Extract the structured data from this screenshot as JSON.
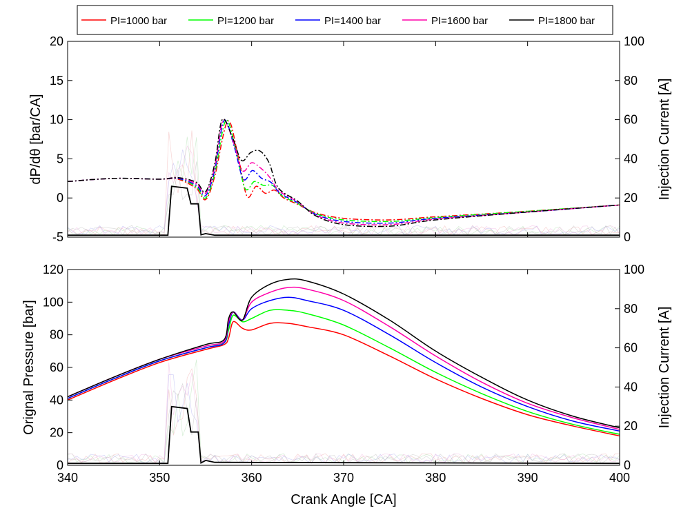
{
  "legend": {
    "items": [
      {
        "label": "PI=1000 bar",
        "color": "#ff0000"
      },
      {
        "label": "PI=1200 bar",
        "color": "#00ff00"
      },
      {
        "label": "PI=1400 bar",
        "color": "#0000ff"
      },
      {
        "label": "PI=1600 bar",
        "color": "#ff00aa"
      },
      {
        "label": "PI=1800 bar",
        "color": "#000000"
      }
    ]
  },
  "chart_data": [
    {
      "type": "line",
      "xlabel": "",
      "ylabel": "dP/dθ [bar/CA]",
      "y2label": "Injection Current [A]",
      "xlim": [
        340,
        400
      ],
      "ylim": [
        -5,
        20
      ],
      "y2lim": [
        0,
        100
      ],
      "xticks": [
        340,
        350,
        360,
        370,
        380,
        390,
        400
      ],
      "xtick_labels_shown": false,
      "yticks": [
        -5,
        0,
        5,
        10,
        15,
        20
      ],
      "y2ticks": [
        0,
        20,
        40,
        60,
        80,
        100
      ],
      "line_style": "dash-dot",
      "series": [
        {
          "name": "PI=1000 bar",
          "color": "#ff0000",
          "x": [
            340,
            345,
            350,
            352,
            354,
            355,
            356,
            357.4,
            358.5,
            359.5,
            360.5,
            361.5,
            362.5,
            363.5,
            365,
            367,
            370,
            375,
            380,
            390,
            400
          ],
          "y": [
            2.1,
            2.5,
            2.4,
            2.4,
            1.2,
            -0.2,
            2.8,
            9.8,
            5.5,
            0.2,
            1.5,
            0.6,
            1.0,
            0.0,
            -0.8,
            -1.9,
            -2.6,
            -2.8,
            -2.4,
            -1.7,
            -0.9
          ]
        },
        {
          "name": "PI=1200 bar",
          "color": "#00ff00",
          "x": [
            340,
            345,
            350,
            352,
            354,
            355,
            356,
            357.2,
            358.3,
            359.3,
            360.3,
            361.3,
            362.3,
            363.3,
            365,
            367,
            370,
            375,
            380,
            390,
            400
          ],
          "y": [
            2.1,
            2.5,
            2.4,
            2.5,
            1.4,
            0.0,
            3.2,
            9.9,
            6.0,
            1.2,
            2.1,
            1.6,
            1.6,
            0.3,
            -0.7,
            -2.0,
            -2.8,
            -3.0,
            -2.5,
            -1.7,
            -0.9
          ]
        },
        {
          "name": "PI=1400 bar",
          "color": "#0000ff",
          "x": [
            340,
            345,
            350,
            352,
            354,
            355,
            356,
            357.0,
            358.1,
            359.1,
            360.1,
            361.1,
            362.1,
            363.1,
            365,
            367,
            370,
            375,
            380,
            390,
            400
          ],
          "y": [
            2.1,
            2.5,
            2.4,
            2.5,
            1.6,
            0.3,
            3.6,
            9.9,
            6.6,
            2.4,
            3.5,
            2.5,
            2.0,
            0.6,
            -0.6,
            -2.1,
            -3.0,
            -3.2,
            -2.6,
            -1.8,
            -0.9
          ]
        },
        {
          "name": "PI=1600 bar",
          "color": "#ff00aa",
          "x": [
            340,
            345,
            350,
            352,
            354,
            355,
            356,
            356.9,
            358.0,
            359.0,
            360.0,
            361.0,
            362.0,
            363.0,
            365,
            367,
            370,
            375,
            380,
            390,
            400
          ],
          "y": [
            2.1,
            2.5,
            2.4,
            2.6,
            1.8,
            0.6,
            4.0,
            9.9,
            7.2,
            3.5,
            4.5,
            3.8,
            2.6,
            0.9,
            -0.5,
            -2.2,
            -3.2,
            -3.4,
            -2.7,
            -1.8,
            -0.9
          ]
        },
        {
          "name": "PI=1800 bar",
          "color": "#000000",
          "x": [
            340,
            345,
            350,
            352,
            354,
            355,
            356,
            356.8,
            357.9,
            358.9,
            359.9,
            360.9,
            361.9,
            362.9,
            365,
            367,
            370,
            375,
            380,
            390,
            400
          ],
          "y": [
            2.1,
            2.5,
            2.4,
            2.6,
            2.0,
            0.8,
            4.4,
            10.0,
            7.8,
            4.8,
            5.8,
            6.0,
            4.5,
            1.3,
            -0.4,
            -2.3,
            -3.4,
            -3.6,
            -2.8,
            -1.8,
            -0.9
          ]
        }
      ],
      "injection_current": {
        "color": "#000000",
        "x": [
          340,
          350.9,
          351.3,
          353.0,
          353.4,
          354.2,
          354.5,
          355,
          356,
          400
        ],
        "y": [
          1.0,
          1.0,
          26.0,
          25.0,
          17.0,
          17.0,
          1.2,
          1.8,
          1.0,
          1.0
        ]
      }
    },
    {
      "type": "line",
      "xlabel": "Crank Angle [CA]",
      "ylabel": "Orignal Pressure [bar]",
      "y2label": "Injection Current [A]",
      "xlim": [
        340,
        400
      ],
      "ylim": [
        0,
        120
      ],
      "y2lim": [
        0,
        100
      ],
      "xticks": [
        340,
        350,
        360,
        370,
        380,
        390,
        400
      ],
      "yticks": [
        0,
        20,
        40,
        60,
        80,
        100,
        120
      ],
      "y2ticks": [
        0,
        20,
        40,
        60,
        80,
        100
      ],
      "line_style": "solid",
      "series": [
        {
          "name": "PI=1000 bar",
          "color": "#ff0000",
          "x": [
            340,
            345,
            350,
            355,
            357,
            357.5,
            358,
            359,
            360,
            362,
            364,
            366,
            370,
            375,
            380,
            385,
            390,
            395,
            400
          ],
          "y": [
            40,
            52,
            63,
            71,
            74,
            78,
            88,
            84,
            83,
            87,
            87,
            85,
            80,
            67,
            53,
            41,
            31,
            24,
            18
          ]
        },
        {
          "name": "PI=1200 bar",
          "color": "#00ff00",
          "x": [
            340,
            345,
            350,
            355,
            357,
            357.5,
            358,
            359,
            360,
            362,
            364,
            366,
            370,
            375,
            380,
            385,
            390,
            395,
            400
          ],
          "y": [
            41,
            53,
            64,
            72,
            75,
            83,
            92,
            88,
            90,
            95,
            95,
            93,
            86,
            72,
            57,
            44,
            33,
            25,
            19
          ]
        },
        {
          "name": "PI=1400 bar",
          "color": "#0000ff",
          "x": [
            340,
            345,
            350,
            355,
            357,
            357.5,
            358,
            359,
            360,
            362,
            364,
            366,
            370,
            375,
            380,
            385,
            390,
            395,
            400
          ],
          "y": [
            41,
            53,
            64,
            72,
            75,
            86,
            94,
            89,
            96,
            101,
            103,
            101,
            95,
            80,
            63,
            48,
            36,
            27,
            21
          ]
        },
        {
          "name": "PI=1600 bar",
          "color": "#ff00aa",
          "x": [
            340,
            345,
            350,
            355,
            357,
            357.5,
            358,
            359,
            360,
            362,
            364,
            366,
            370,
            375,
            380,
            385,
            390,
            395,
            400
          ],
          "y": [
            42,
            54,
            65,
            73,
            76,
            88,
            94,
            89,
            100,
            106,
            109,
            108,
            101,
            85,
            67,
            51,
            38,
            29,
            22
          ]
        },
        {
          "name": "PI=1800 bar",
          "color": "#000000",
          "x": [
            340,
            345,
            350,
            355,
            357,
            357.5,
            358,
            359,
            360,
            362,
            364,
            366,
            370,
            375,
            380,
            385,
            390,
            395,
            400
          ],
          "y": [
            42,
            54,
            65,
            74,
            77,
            90,
            94,
            89,
            103,
            111,
            114,
            113,
            105,
            89,
            70,
            54,
            40,
            30,
            23
          ]
        }
      ],
      "injection_current": {
        "color": "#000000",
        "x": [
          340,
          350.9,
          351.3,
          353.0,
          353.4,
          354.2,
          354.5,
          355,
          356,
          400
        ],
        "y": [
          1.0,
          1.0,
          30.0,
          29.0,
          17.0,
          17.0,
          1.2,
          2.5,
          1.5,
          1.0
        ]
      }
    }
  ]
}
